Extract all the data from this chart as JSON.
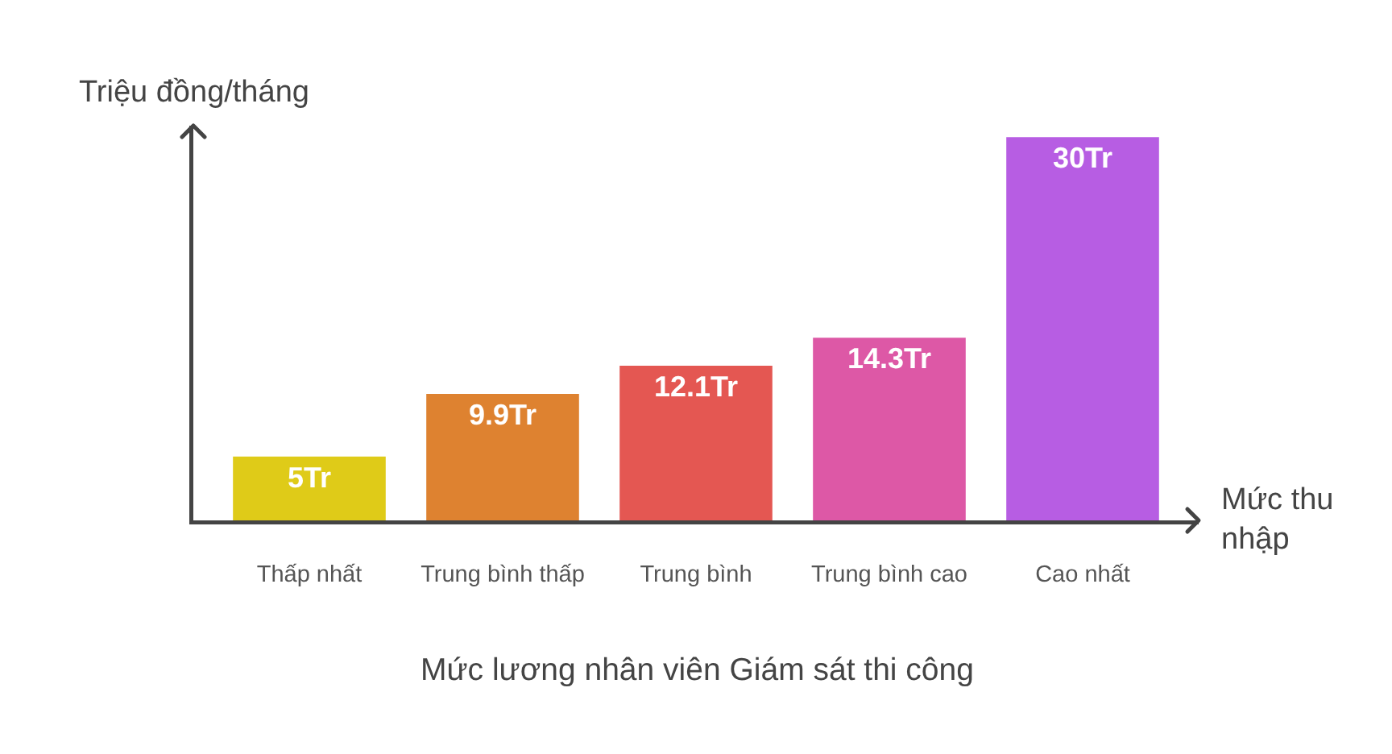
{
  "chart_data": {
    "type": "bar",
    "title": "Mức lương nhân viên Giám sát thi công",
    "xlabel": "Mức thu nhập",
    "ylabel": "Triệu đồng/tháng",
    "categories": [
      "Thấp nhất",
      "Trung bình thấp",
      "Trung bình",
      "Trung bình cao",
      "Cao nhất"
    ],
    "values": [
      5,
      9.9,
      12.1,
      14.3,
      30
    ],
    "value_labels": [
      "5Tr",
      "9.9Tr",
      "12.1Tr",
      "14.3Tr",
      "30Tr"
    ],
    "colors": [
      "#dfcb18",
      "#de8230",
      "#e45752",
      "#dd58a6",
      "#b75de3"
    ],
    "tick_labels": "x",
    "grid": false
  }
}
